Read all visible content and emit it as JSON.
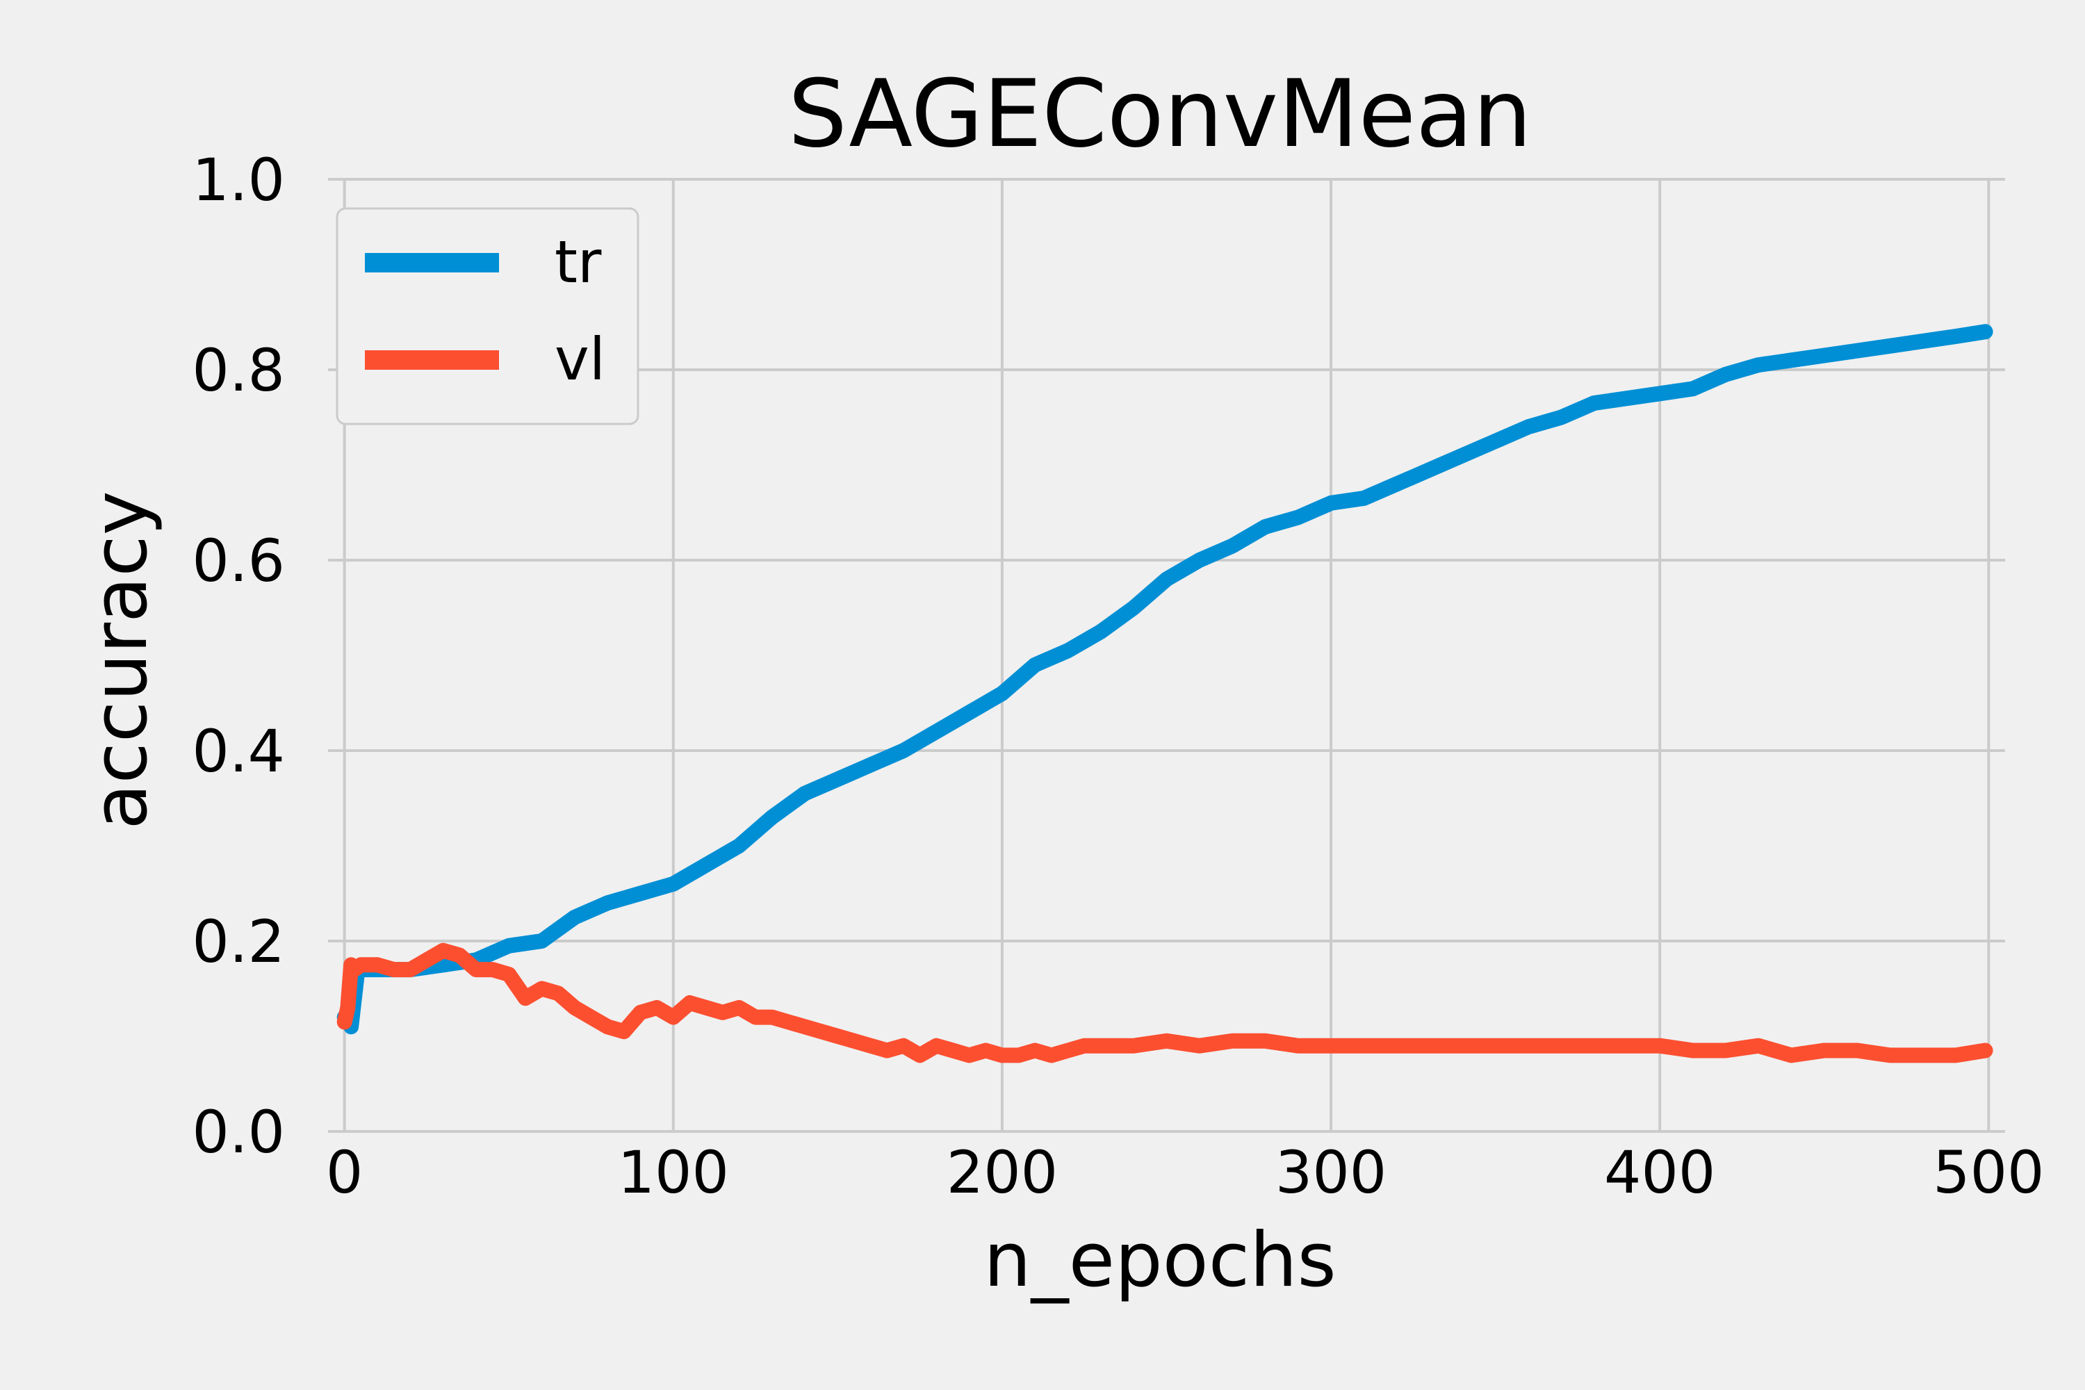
{
  "chart_data": {
    "type": "line",
    "title": "SAGEConvMean",
    "xlabel": "n_epochs",
    "ylabel": "accuracy",
    "xlim": [
      -5,
      505
    ],
    "ylim": [
      0,
      1.0
    ],
    "x_ticks": [
      0,
      100,
      200,
      300,
      400,
      500
    ],
    "x_tick_labels": [
      "0",
      "100",
      "200",
      "300",
      "400",
      "500"
    ],
    "y_ticks": [
      0.0,
      0.2,
      0.4,
      0.6,
      0.8,
      1.0
    ],
    "y_tick_labels": [
      "0.0",
      "0.2",
      "0.4",
      "0.6",
      "0.8",
      "1.0"
    ],
    "grid": true,
    "legend_position": "top-left",
    "background_color": "#f0f0f0",
    "series": [
      {
        "name": "tr",
        "color": "#008fd5",
        "x": [
          0,
          2,
          4,
          10,
          20,
          30,
          40,
          50,
          60,
          70,
          80,
          90,
          100,
          110,
          120,
          130,
          140,
          150,
          160,
          170,
          180,
          190,
          200,
          210,
          220,
          230,
          240,
          250,
          260,
          270,
          280,
          290,
          300,
          310,
          320,
          330,
          340,
          350,
          360,
          370,
          380,
          390,
          400,
          410,
          420,
          430,
          440,
          450,
          460,
          470,
          480,
          490,
          499
        ],
        "y": [
          0.12,
          0.11,
          0.17,
          0.17,
          0.17,
          0.175,
          0.18,
          0.195,
          0.2,
          0.225,
          0.24,
          0.25,
          0.26,
          0.28,
          0.3,
          0.33,
          0.355,
          0.37,
          0.385,
          0.4,
          0.42,
          0.44,
          0.46,
          0.49,
          0.505,
          0.525,
          0.55,
          0.58,
          0.6,
          0.615,
          0.635,
          0.645,
          0.66,
          0.665,
          0.68,
          0.695,
          0.71,
          0.725,
          0.74,
          0.75,
          0.765,
          0.77,
          0.775,
          0.78,
          0.795,
          0.805,
          0.81,
          0.815,
          0.82,
          0.825,
          0.83,
          0.835,
          0.84
        ]
      },
      {
        "name": "vl",
        "color": "#fc4f30",
        "x": [
          0,
          1,
          2,
          3,
          5,
          10,
          15,
          20,
          25,
          30,
          35,
          40,
          45,
          50,
          55,
          60,
          65,
          70,
          75,
          80,
          85,
          90,
          95,
          100,
          105,
          110,
          115,
          120,
          125,
          130,
          135,
          140,
          145,
          150,
          155,
          160,
          165,
          170,
          175,
          180,
          185,
          190,
          195,
          200,
          205,
          210,
          215,
          220,
          225,
          230,
          240,
          250,
          260,
          270,
          280,
          290,
          300,
          310,
          320,
          330,
          340,
          350,
          360,
          370,
          380,
          390,
          400,
          410,
          420,
          430,
          440,
          450,
          460,
          470,
          480,
          490,
          499
        ],
        "y": [
          0.115,
          0.13,
          0.175,
          0.17,
          0.175,
          0.175,
          0.17,
          0.17,
          0.18,
          0.19,
          0.185,
          0.17,
          0.17,
          0.165,
          0.14,
          0.15,
          0.145,
          0.13,
          0.12,
          0.11,
          0.105,
          0.125,
          0.13,
          0.12,
          0.135,
          0.13,
          0.125,
          0.13,
          0.12,
          0.12,
          0.115,
          0.11,
          0.105,
          0.1,
          0.095,
          0.09,
          0.085,
          0.09,
          0.08,
          0.09,
          0.085,
          0.08,
          0.085,
          0.08,
          0.08,
          0.085,
          0.08,
          0.085,
          0.09,
          0.09,
          0.09,
          0.095,
          0.09,
          0.095,
          0.095,
          0.09,
          0.09,
          0.09,
          0.09,
          0.09,
          0.09,
          0.09,
          0.09,
          0.09,
          0.09,
          0.09,
          0.09,
          0.085,
          0.085,
          0.09,
          0.08,
          0.085,
          0.085,
          0.08,
          0.08,
          0.08,
          0.085
        ]
      }
    ]
  }
}
